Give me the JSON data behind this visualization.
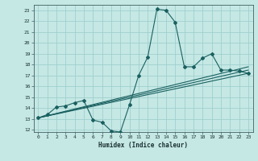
{
  "xlabel": "Humidex (Indice chaleur)",
  "background_color": "#c5e8e5",
  "grid_color": "#9fcfcc",
  "line_color": "#1a6060",
  "xlim": [
    -0.5,
    23.5
  ],
  "ylim": [
    11.8,
    23.5
  ],
  "xticks": [
    0,
    1,
    2,
    3,
    4,
    5,
    6,
    7,
    8,
    9,
    10,
    11,
    12,
    13,
    14,
    15,
    16,
    17,
    18,
    19,
    20,
    21,
    22,
    23
  ],
  "yticks": [
    12,
    13,
    14,
    15,
    16,
    17,
    18,
    19,
    20,
    21,
    22,
    23
  ],
  "line1_x": [
    0,
    1,
    2,
    3,
    4,
    5,
    6,
    7,
    8,
    9,
    10,
    11,
    12,
    13,
    14,
    15,
    16,
    17,
    18,
    19,
    20,
    21,
    22,
    23
  ],
  "line1_y": [
    13.1,
    13.4,
    14.1,
    14.2,
    14.5,
    14.7,
    12.9,
    12.7,
    11.9,
    11.8,
    14.3,
    17.0,
    18.7,
    23.1,
    23.0,
    21.9,
    17.8,
    17.8,
    18.6,
    19.0,
    17.5,
    17.5,
    17.4,
    17.2
  ],
  "line2_x": [
    0,
    23
  ],
  "line2_y": [
    13.1,
    17.2
  ],
  "line3_x": [
    0,
    23
  ],
  "line3_y": [
    13.1,
    17.5
  ],
  "line4_x": [
    0,
    23
  ],
  "line4_y": [
    13.1,
    17.8
  ]
}
